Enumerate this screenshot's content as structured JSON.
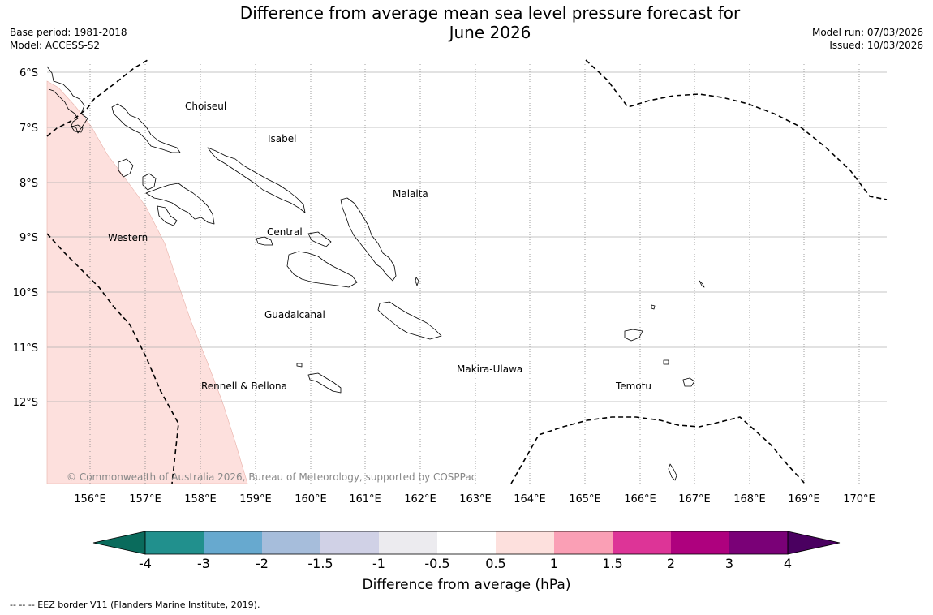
{
  "title": {
    "line1": "Difference from average mean sea level pressure forecast for",
    "line2": "June 2026"
  },
  "meta": {
    "base_period": "Base period: 1981-2018",
    "model": "Model: ACCESS-S2",
    "model_run": "Model run: 07/03/2026",
    "issued": "Issued: 10/03/2026"
  },
  "axes": {
    "lon_labels": [
      "156°E",
      "157°E",
      "158°E",
      "159°E",
      "160°E",
      "161°E",
      "162°E",
      "163°E",
      "164°E",
      "165°E",
      "166°E",
      "167°E",
      "168°E",
      "169°E",
      "170°E"
    ],
    "lat_labels": [
      "6°S",
      "7°S",
      "8°S",
      "9°S",
      "10°S",
      "11°S",
      "12°S"
    ]
  },
  "provinces": [
    "Choiseul",
    "Isabel",
    "Malaita",
    "Western",
    "Central",
    "Guadalcanal",
    "Rennell & Bellona",
    "Makira-Ulawa",
    "Temotu"
  ],
  "copyright": "© Commonwealth of Australia 2026, Bureau of Meteorology, supported by COSPPac",
  "colorbar": {
    "label": "Difference from average (hPa)",
    "ticks": [
      "-4",
      "-3",
      "-2",
      "-1.5",
      "-1",
      "-0.5",
      "0.5",
      "1",
      "1.5",
      "2",
      "3",
      "4"
    ],
    "low_extend_color": "#0a6b5c",
    "high_extend_color": "#4a0060",
    "colors": [
      "#21908d",
      "#67a9cf",
      "#a6bddb",
      "#d0d1e6",
      "#ecebef",
      "#ffffff",
      "#fde0dd",
      "#fa9fb5",
      "#dd3497",
      "#ae017e",
      "#7a0177"
    ]
  },
  "anomaly_fill_color": "#fde0dd",
  "footnote": "--  --  -- EEZ border V11 (Flanders Marine Institute, 2019)."
}
